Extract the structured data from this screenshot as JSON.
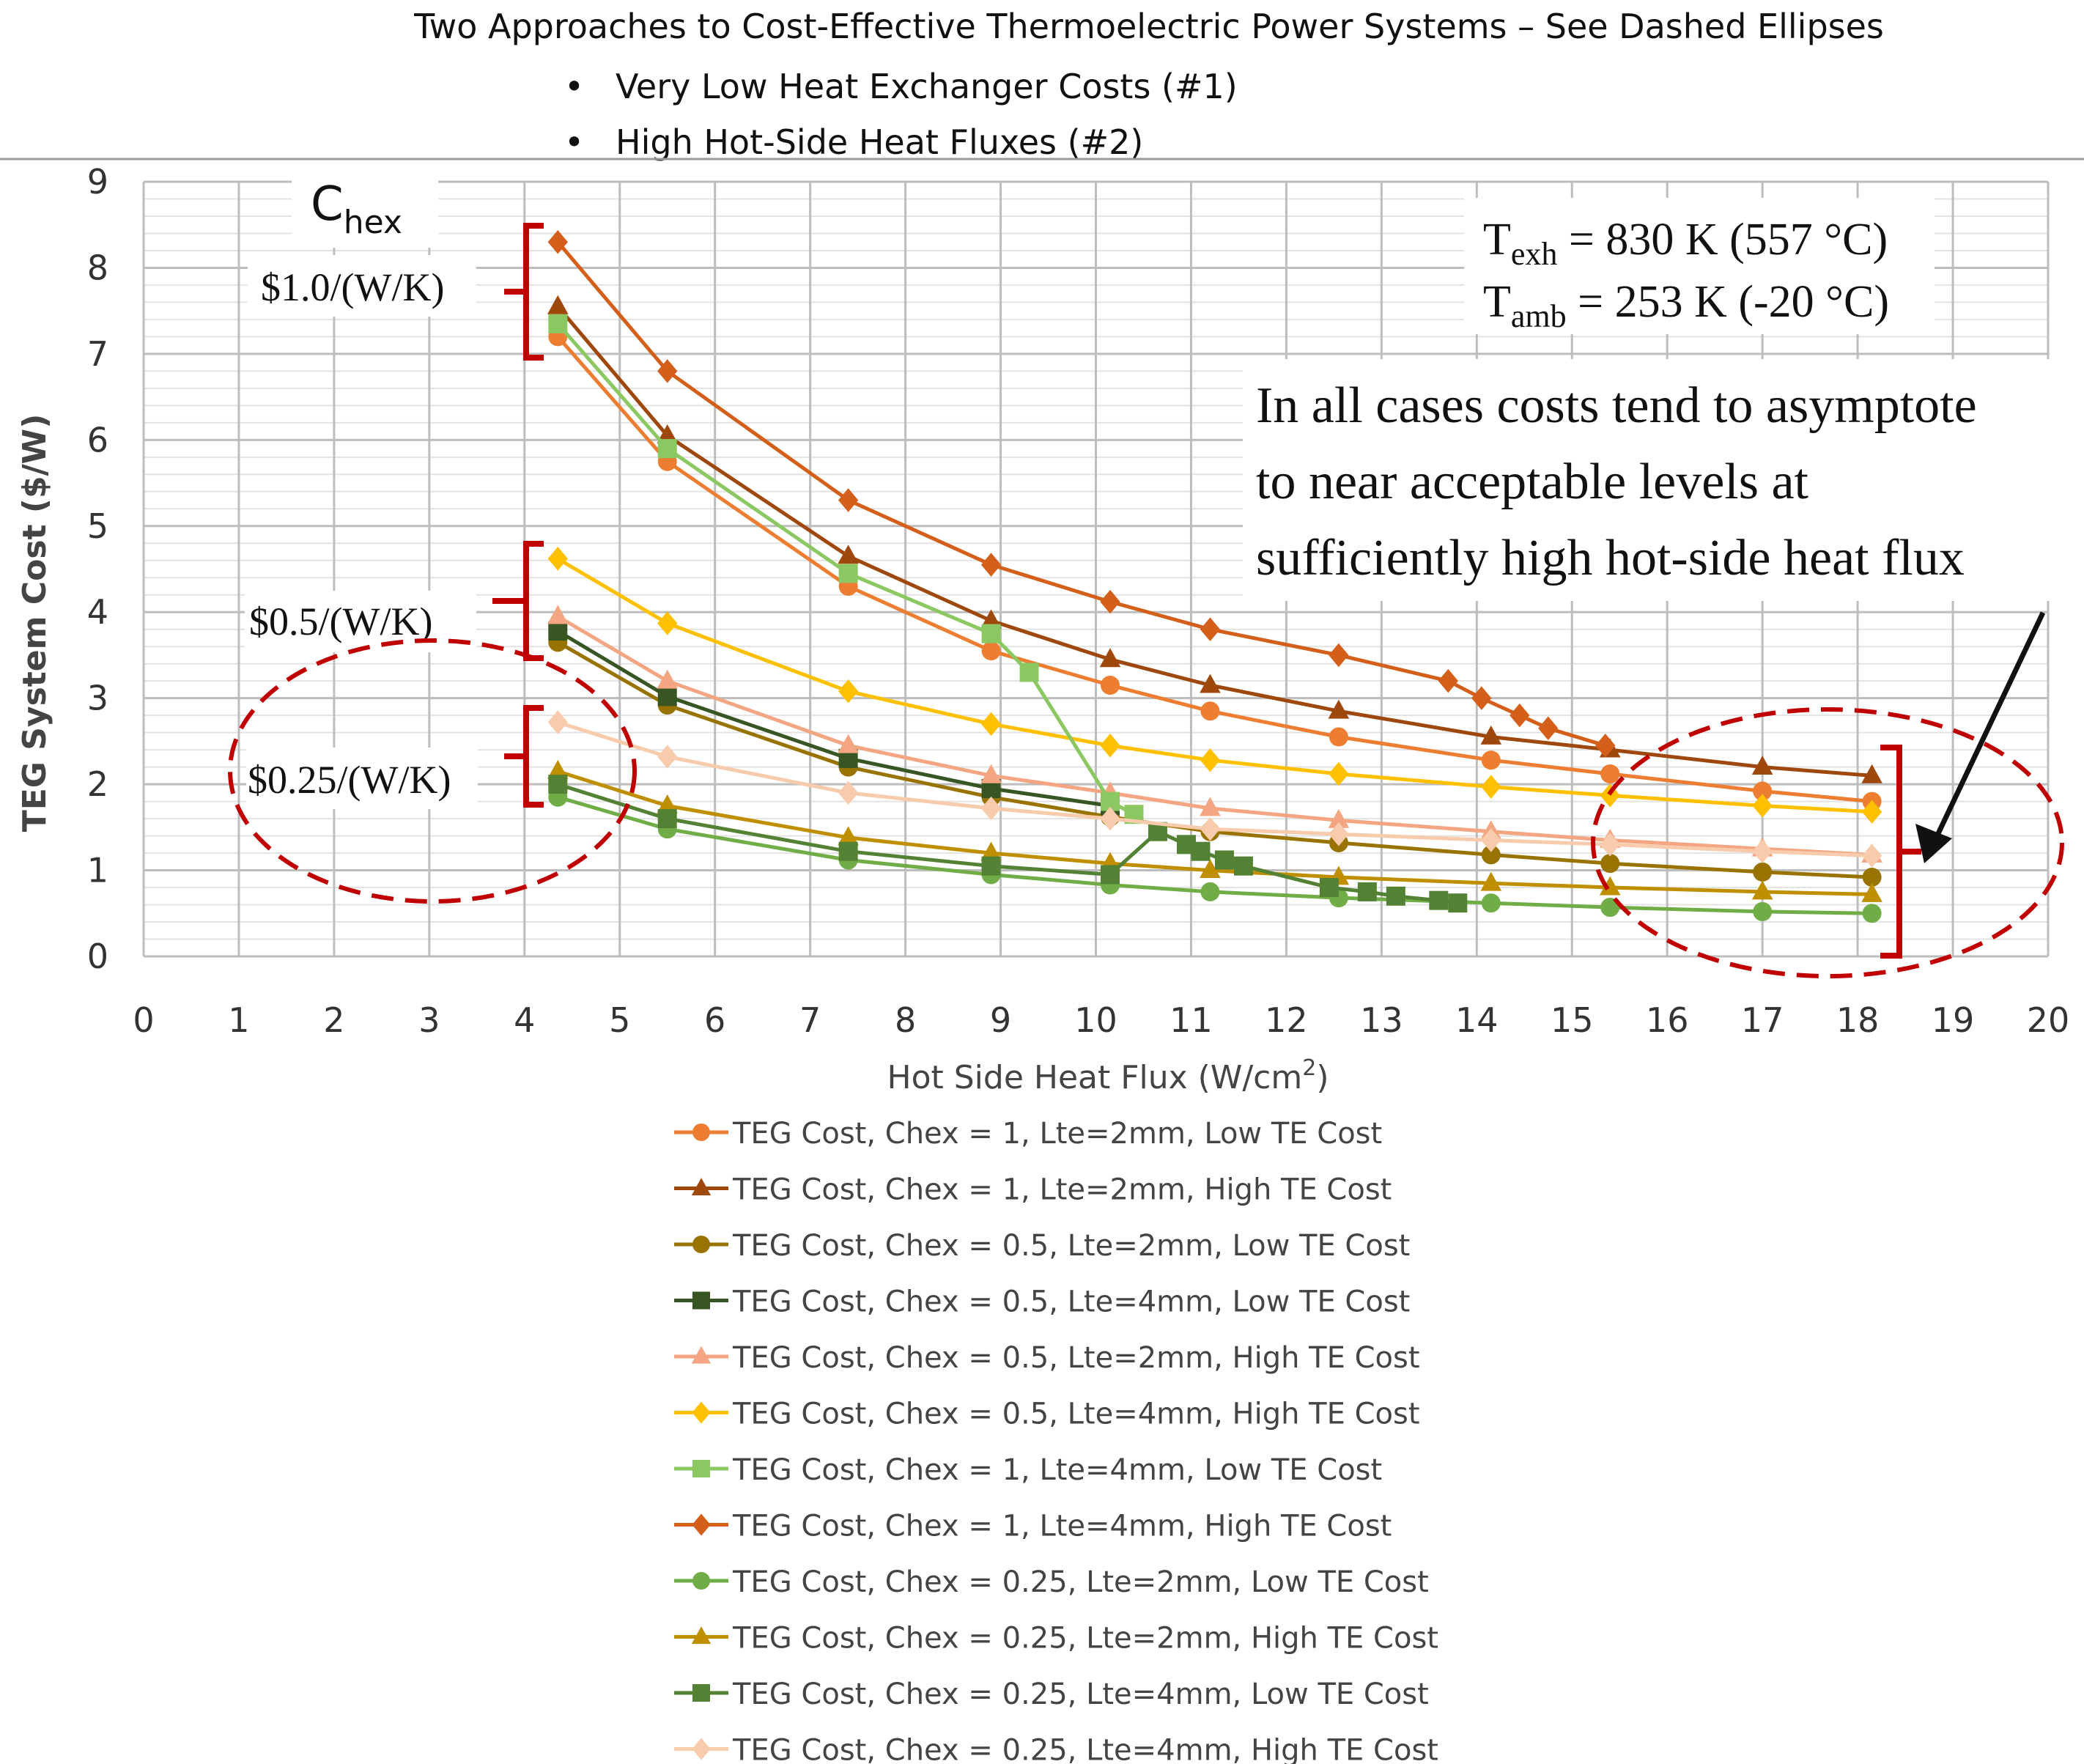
{
  "chart_data": {
    "type": "line",
    "title": "Two Approaches to Cost-Effective Thermoelectric Power Systems – See Dashed Ellipses",
    "bullets": [
      "Very Low Heat Exchanger Costs (#1)",
      "High Hot-Side Heat Fluxes (#2)"
    ],
    "xlabel": "Hot Side Heat Flux (W/cm²)",
    "ylabel": "TEG System Cost ($/W)",
    "xlim": [
      0,
      20
    ],
    "ylim": [
      0,
      9
    ],
    "xticks": [
      0,
      1,
      2,
      3,
      4,
      5,
      6,
      7,
      8,
      9,
      10,
      11,
      12,
      13,
      14,
      15,
      16,
      17,
      18,
      19,
      20
    ],
    "yticks": [
      0,
      1,
      2,
      3,
      4,
      5,
      6,
      7,
      8,
      9
    ],
    "grid": true,
    "legend_position": "bottom",
    "annotations": {
      "chex_label": "C",
      "chex_sub": "hex",
      "bracket_labels": [
        "$1.0/(W/K)",
        "$0.5/(W/K)",
        "$0.25/(W/K)"
      ],
      "texh_prefix": "T",
      "texh_sub": "exh",
      "texh_value": " = 830 K (557 °C)",
      "tamb_prefix": "T",
      "tamb_sub": "amb",
      "tamb_value": " = 253 K (-20 °C)",
      "note_lines": [
        "In all cases costs tend to asymptote",
        "to near acceptable levels at",
        "sufficiently high hot-side heat flux"
      ]
    },
    "series": [
      {
        "name": "TEG Cost, Chex = 1, Lte=2mm, Low TE Cost",
        "color": "#ED7D31",
        "marker": "circle",
        "x": [
          4.35,
          5.5,
          7.4,
          8.9,
          10.15,
          11.2,
          12.55,
          14.15,
          15.4,
          17.0,
          18.15
        ],
        "y": [
          7.2,
          5.75,
          4.3,
          3.55,
          3.15,
          2.85,
          2.55,
          2.28,
          2.12,
          1.92,
          1.8
        ]
      },
      {
        "name": "TEG Cost, Chex = 1, Lte=2mm, High TE Cost",
        "color": "#9E480E",
        "marker": "triangle",
        "x": [
          4.35,
          5.5,
          7.4,
          8.9,
          10.15,
          11.2,
          12.55,
          14.15,
          15.4,
          17.0,
          18.15
        ],
        "y": [
          7.55,
          6.05,
          4.65,
          3.9,
          3.45,
          3.15,
          2.85,
          2.55,
          2.4,
          2.2,
          2.1
        ]
      },
      {
        "name": "TEG Cost, Chex = 0.5, Lte=2mm, Low TE Cost",
        "color": "#997300",
        "marker": "circle",
        "x": [
          4.35,
          5.5,
          7.4,
          8.9,
          10.15,
          11.2,
          12.55,
          14.15,
          15.4,
          17.0,
          18.15
        ],
        "y": [
          3.65,
          2.92,
          2.2,
          1.85,
          1.62,
          1.45,
          1.32,
          1.18,
          1.08,
          0.98,
          0.92
        ]
      },
      {
        "name": "TEG Cost, Chex = 0.5, Lte=4mm, Low TE Cost",
        "color": "#375623",
        "marker": "square",
        "x": [
          4.35,
          5.5,
          7.4,
          8.9,
          10.15
        ],
        "y": [
          3.78,
          3.02,
          2.3,
          1.95,
          1.75
        ]
      },
      {
        "name": "TEG Cost, Chex = 0.5, Lte=2mm, High TE Cost",
        "color": "#F4A582",
        "marker": "triangle",
        "x": [
          4.35,
          5.5,
          7.4,
          8.9,
          10.15,
          11.2,
          12.55,
          14.15,
          15.4,
          17.0,
          18.15
        ],
        "y": [
          3.95,
          3.2,
          2.45,
          2.1,
          1.9,
          1.72,
          1.58,
          1.45,
          1.35,
          1.25,
          1.18
        ]
      },
      {
        "name": "TEG Cost, Chex = 0.5, Lte=4mm, High TE Cost",
        "color": "#FFC000",
        "marker": "diamond",
        "x": [
          4.35,
          5.5,
          7.4,
          8.9,
          10.15,
          11.2,
          12.55,
          14.15,
          15.4,
          17.0,
          18.15
        ],
        "y": [
          4.62,
          3.87,
          3.08,
          2.7,
          2.45,
          2.28,
          2.12,
          1.97,
          1.87,
          1.75,
          1.68
        ]
      },
      {
        "name": "TEG Cost, Chex = 1, Lte=4mm, Low TE Cost",
        "color": "#8BC862",
        "marker": "square",
        "x": [
          4.35,
          5.5,
          7.4,
          8.9,
          9.3,
          10.15,
          10.4
        ],
        "y": [
          7.35,
          5.9,
          4.45,
          3.75,
          3.3,
          1.8,
          1.65
        ]
      },
      {
        "name": "TEG Cost, Chex = 1, Lte=4mm, High TE Cost",
        "color": "#D35F1A",
        "marker": "diamond",
        "x": [
          4.35,
          5.5,
          7.4,
          8.9,
          10.15,
          11.2,
          12.55,
          13.7,
          14.05,
          14.45,
          14.75,
          15.35
        ],
        "y": [
          8.3,
          6.8,
          5.3,
          4.55,
          4.12,
          3.8,
          3.5,
          3.2,
          3.0,
          2.8,
          2.65,
          2.45
        ]
      },
      {
        "name": "TEG Cost, Chex = 0.25, Lte=2mm, Low TE Cost",
        "color": "#70AD47",
        "marker": "circle",
        "x": [
          4.35,
          5.5,
          7.4,
          8.9,
          10.15,
          11.2,
          12.55,
          14.15,
          15.4,
          17.0,
          18.15
        ],
        "y": [
          1.85,
          1.48,
          1.12,
          0.95,
          0.83,
          0.75,
          0.68,
          0.62,
          0.57,
          0.52,
          0.5
        ]
      },
      {
        "name": "TEG Cost, Chex = 0.25, Lte=2mm, High TE Cost",
        "color": "#BF8F00",
        "marker": "triangle",
        "x": [
          4.35,
          5.5,
          7.4,
          8.9,
          10.15,
          11.2,
          12.55,
          14.15,
          15.4,
          17.0,
          18.15
        ],
        "y": [
          2.15,
          1.75,
          1.38,
          1.2,
          1.08,
          1.0,
          0.92,
          0.85,
          0.8,
          0.75,
          0.72
        ]
      },
      {
        "name": "TEG Cost, Chex = 0.25, Lte=4mm, Low TE Cost",
        "color": "#548235",
        "marker": "square",
        "x": [
          4.35,
          5.5,
          7.4,
          8.9,
          10.15,
          10.65,
          10.95,
          11.1,
          11.35,
          11.55,
          12.45,
          12.85,
          13.15,
          13.6,
          13.8
        ],
        "y": [
          2.0,
          1.6,
          1.22,
          1.05,
          0.95,
          1.45,
          1.3,
          1.22,
          1.12,
          1.05,
          0.8,
          0.75,
          0.7,
          0.65,
          0.62
        ]
      },
      {
        "name": "TEG Cost, Chex = 0.25, Lte=4mm, High TE Cost",
        "color": "#F8CBAD",
        "marker": "diamond",
        "x": [
          4.35,
          5.5,
          7.4,
          8.9,
          10.15,
          11.2,
          12.55,
          14.15,
          15.4,
          17.0,
          18.15
        ],
        "y": [
          2.72,
          2.32,
          1.9,
          1.72,
          1.6,
          1.48,
          1.42,
          1.35,
          1.3,
          1.22,
          1.17
        ]
      }
    ]
  }
}
